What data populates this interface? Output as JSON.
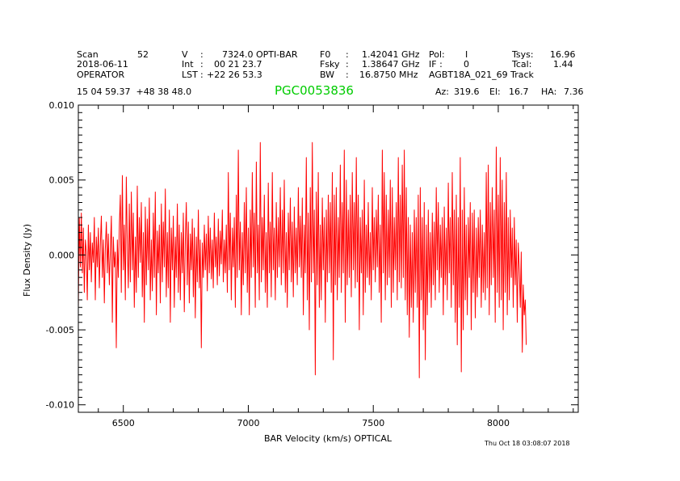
{
  "header": {
    "scan_label": "Scan",
    "scan_value": "52",
    "date": "2018-06-11",
    "observer": "OPERATOR",
    "v_label": "V",
    "v_sep": ":",
    "v_value": "7324.0 OPTI-BAR",
    "int_label": "Int",
    "int_sep": ":",
    "int_value": "00 21 23.7",
    "lst_label": "LST",
    "lst_sep": ":",
    "lst_value": "+22 26 53.3",
    "f0_label": "F0",
    "f0_sep": ":",
    "f0_value": "1.42041 GHz",
    "fsky_label": "Fsky",
    "fsky_sep": ":",
    "fsky_value": "1.38647 GHz",
    "bw_label": "BW",
    "bw_sep": ":",
    "bw_value": "16.8750 MHz",
    "pol_label": "Pol:",
    "pol_value": "I",
    "if_label": "IF :",
    "if_value": "0",
    "project": "AGBT18A_021_69 Track",
    "tsys_label": "Tsys:",
    "tsys_value": "16.96",
    "tcal_label": "Tcal:",
    "tcal_value": "1.44",
    "coords": "15 04 59.37  +48 38 48.0",
    "source": "PGC0053836",
    "az_label": "Az:",
    "az_value": "319.6",
    "el_label": "El:",
    "el_value": "16.7",
    "ha_label": "HA:",
    "ha_value": "7.36"
  },
  "timestamp": "Thu Oct 18 03:08:07 2018",
  "colors": {
    "trace": "#ff0000",
    "source": "#00cc00",
    "axis": "#000000"
  },
  "chart_data": {
    "type": "line",
    "title": "PGC0053836",
    "xlabel": "BAR Velocity (km/s) OPTICAL",
    "ylabel": "Flux Density (Jy)",
    "xlim": [
      6320,
      8320
    ],
    "ylim": [
      -0.0105,
      0.01
    ],
    "xticks": [
      6500,
      7000,
      7500,
      8000
    ],
    "xtick_labels": [
      "6500",
      "7000",
      "7500",
      "8000"
    ],
    "yticks": [
      -0.01,
      -0.005,
      0.0,
      0.005,
      0.01
    ],
    "ytick_labels": [
      "-0.010",
      "-0.005",
      "0.000",
      "0.005",
      "0.010"
    ],
    "series": [
      {
        "name": "spectrum",
        "x_start": 6320,
        "x_step": 4,
        "values": [
          -0.0035,
          0.0025,
          -0.0008,
          0.0028,
          -0.0012,
          0.0018,
          -0.0025,
          0.001,
          0.0002,
          -0.003,
          0.002,
          -0.001,
          0.0015,
          -0.0018,
          0.0008,
          -0.0005,
          0.0025,
          -0.003,
          0.0012,
          -0.0008,
          0.0018,
          -0.0022,
          0.0006,
          0.0026,
          -0.0015,
          0.001,
          -0.0032,
          0.0004,
          0.0022,
          -0.0012,
          0.0014,
          -0.002,
          0.0002,
          0.0026,
          -0.0045,
          0.0012,
          -0.0008,
          0.0002,
          -0.0062,
          0.001,
          -0.0015,
          0.002,
          0.004,
          -0.0025,
          0.0053,
          -0.001,
          0.002,
          -0.003,
          0.0052,
          0.0005,
          -0.0022,
          0.0034,
          -0.0018,
          0.0042,
          -0.001,
          0.0028,
          -0.0035,
          0.0012,
          -0.0025,
          0.0046,
          -0.0015,
          0.0025,
          -0.0005,
          0.0035,
          -0.0028,
          0.0015,
          -0.0045,
          0.0032,
          -0.002,
          0.0024,
          -0.001,
          0.0038,
          -0.003,
          0.001,
          -0.0024,
          0.0028,
          -0.0015,
          0.0042,
          -0.004,
          0.0016,
          -0.0012,
          0.002,
          -0.0032,
          0.0034,
          -0.0018,
          0.0022,
          -0.0008,
          0.0044,
          -0.0028,
          0.0015,
          -0.0022,
          0.003,
          -0.0045,
          0.0018,
          -0.001,
          0.0026,
          -0.0035,
          0.0012,
          -0.0015,
          0.0034,
          -0.0025,
          0.002,
          -0.003,
          0.0015,
          -0.0012,
          0.0028,
          -0.0038,
          0.001,
          0.0035,
          -0.002,
          0.0022,
          -0.0032,
          0.0014,
          -0.001,
          0.0024,
          -0.0028,
          0.0018,
          -0.0042,
          0.0012,
          -0.0018,
          0.003,
          -0.0022,
          0.001,
          -0.0062,
          0.0008,
          -0.0015,
          0.002,
          -0.001,
          0.0014,
          -0.0024,
          0.0026,
          -0.0012,
          0.0018,
          -0.0016,
          0.001,
          -0.0022,
          0.0028,
          -0.0008,
          0.0012,
          -0.002,
          0.0024,
          -0.0014,
          0.0016,
          -0.0006,
          0.003,
          -0.0018,
          0.001,
          -0.0012,
          0.002,
          -0.0025,
          0.0055,
          -0.001,
          0.0028,
          -0.003,
          0.0018,
          -0.0008,
          0.0025,
          -0.0035,
          0.004,
          -0.0015,
          0.007,
          -0.001,
          0.0022,
          -0.004,
          0.0015,
          -0.002,
          0.0035,
          -0.0012,
          0.0045,
          -0.0025,
          0.0018,
          -0.004,
          0.003,
          -0.0015,
          0.0055,
          -0.0008,
          0.0028,
          -0.0035,
          0.0062,
          -0.0012,
          0.002,
          -0.003,
          0.0075,
          -0.0018,
          0.0025,
          -0.001,
          0.004,
          -0.0025,
          0.0015,
          -0.0035,
          0.0048,
          -0.0012,
          0.0022,
          -0.0028,
          0.0055,
          -0.001,
          0.0018,
          -0.003,
          0.0035,
          -0.0015,
          0.0025,
          -0.0008,
          0.0045,
          -0.002,
          0.003,
          -0.0012,
          0.005,
          -0.0025,
          0.0015,
          -0.0035,
          0.0028,
          -0.001,
          0.0038,
          -0.0018,
          0.0022,
          -0.0028,
          0.0032,
          -0.0012,
          0.0018,
          -0.002,
          0.0045,
          -0.0008,
          0.0026,
          -0.0015,
          0.0038,
          -0.004,
          0.002,
          -0.0012,
          0.0065,
          -0.003,
          0.0028,
          -0.005,
          0.0045,
          -0.0018,
          0.0075,
          -0.0012,
          0.003,
          -0.008,
          0.0042,
          -0.002,
          0.0055,
          -0.0035,
          0.002,
          -0.003,
          0.0038,
          -0.001,
          0.0025,
          -0.0045,
          0.003,
          -0.0018,
          0.004,
          -0.0012,
          0.0035,
          -0.0025,
          0.0055,
          -0.007,
          0.004,
          -0.002,
          0.0045,
          -0.003,
          0.0025,
          -0.0015,
          0.006,
          -0.0025,
          0.0035,
          -0.0012,
          0.007,
          -0.0045,
          0.005,
          -0.002,
          0.003,
          -0.0015,
          0.004,
          -0.0028,
          0.0055,
          -0.001,
          0.0035,
          -0.0022,
          0.0065,
          -0.0018,
          0.004,
          -0.005,
          0.0025,
          -0.0012,
          0.003,
          -0.004,
          0.005,
          -0.0025,
          0.002,
          -0.0015,
          0.0035,
          -0.002,
          0.0015,
          -0.003,
          0.0045,
          -0.001,
          0.0025,
          -0.0018,
          0.003,
          -0.0008,
          0.004,
          -0.0025,
          0.002,
          -0.0045,
          0.007,
          -0.0012,
          0.0055,
          -0.003,
          0.004,
          -0.002,
          0.003,
          -0.0015,
          0.005,
          -0.0035,
          0.0045,
          -0.0025,
          0.0025,
          -0.001,
          0.0035,
          -0.003,
          0.0065,
          -0.0018,
          0.004,
          -0.0022,
          0.006,
          -0.0015,
          0.007,
          -0.003,
          0.0045,
          -0.004,
          0.0025,
          -0.0055,
          0.002,
          -0.0035,
          0.0015,
          -0.0045,
          0.003,
          -0.0025,
          0.0025,
          -0.0035,
          0.004,
          -0.0082,
          0.0045,
          -0.003,
          0.0025,
          -0.005,
          0.0035,
          -0.007,
          0.002,
          -0.004,
          0.003,
          -0.0025,
          0.0015,
          -0.0035,
          0.0028,
          -0.002,
          0.0022,
          -0.003,
          0.0045,
          -0.001,
          0.0035,
          -0.0025,
          0.002,
          -0.0015,
          0.0025,
          -0.004,
          0.0032,
          -0.002,
          0.0018,
          -0.003,
          0.0048,
          -0.0012,
          0.0025,
          -0.0035,
          0.0055,
          -0.002,
          0.003,
          -0.0045,
          0.004,
          -0.006,
          0.0025,
          -0.0035,
          0.0065,
          -0.0078,
          0.003,
          -0.005,
          0.0045,
          -0.003,
          0.002,
          -0.004,
          0.0025,
          -0.0015,
          0.0035,
          -0.005,
          0.0028,
          -0.0025,
          0.003,
          -0.0042,
          0.0018,
          -0.0028,
          0.0025,
          -0.0015,
          0.003,
          -0.0035,
          0.002,
          -0.0025,
          0.0015,
          -0.003,
          0.0055,
          -0.0022,
          0.006,
          -0.004,
          0.0035,
          -0.002,
          0.0045,
          -0.0015,
          0.003,
          -0.0045,
          0.0072,
          -0.0025,
          0.004,
          -0.0035,
          0.0065,
          -0.003,
          0.005,
          -0.005,
          0.0035,
          -0.0025,
          0.0055,
          -0.004,
          0.0025,
          -0.003,
          0.003,
          -0.0015,
          0.0018,
          -0.0035,
          0.0025,
          -0.002,
          0.001,
          -0.0045,
          0.0008,
          -0.001,
          -0.0035,
          0.0002,
          -0.0065,
          -0.002,
          -0.004,
          -0.003,
          -0.006
        ]
      }
    ]
  }
}
